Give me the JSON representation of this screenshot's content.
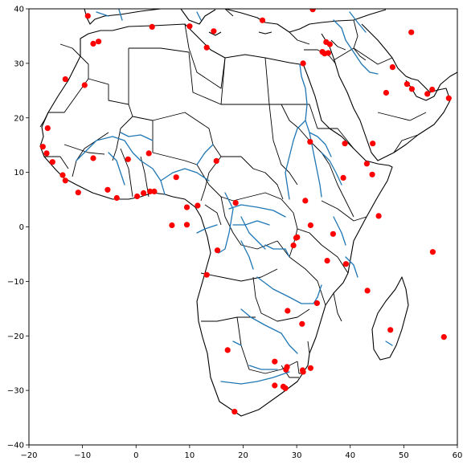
{
  "chart_data": {
    "type": "scatter",
    "title": "",
    "xlabel": "",
    "ylabel": "",
    "xlim": [
      -20,
      60
    ],
    "ylim": [
      -40,
      40
    ],
    "x_ticks": [
      "−20",
      "−10",
      "0",
      "10",
      "20",
      "30",
      "40",
      "50",
      "60"
    ],
    "y_ticks": [
      "40",
      "30",
      "20",
      "10",
      "0",
      "−10",
      "−20",
      "−30",
      "−40"
    ],
    "x_tick_values": [
      -20,
      -10,
      0,
      10,
      20,
      30,
      40,
      50,
      60
    ],
    "y_tick_values": [
      40,
      30,
      20,
      10,
      0,
      -10,
      -20,
      -30,
      -40
    ],
    "marker_color": "#ff0000",
    "river_color": "#1f77b4",
    "border_color": "#000000",
    "grid": false,
    "points": [
      [
        -9,
        38.7
      ],
      [
        -8,
        33.6
      ],
      [
        -7,
        34.0
      ],
      [
        3,
        36.7
      ],
      [
        10,
        36.8
      ],
      [
        14.5,
        35.9
      ],
      [
        13.2,
        32.9
      ],
      [
        23.6,
        37.9
      ],
      [
        33,
        39.9
      ],
      [
        34.8,
        32.1
      ],
      [
        35.5,
        33.9
      ],
      [
        36.2,
        33.5
      ],
      [
        35.9,
        31.9
      ],
      [
        35.2,
        31.8
      ],
      [
        -13.2,
        27.1
      ],
      [
        -9.6,
        26.0
      ],
      [
        -16.5,
        18.1
      ],
      [
        -17.4,
        14.7
      ],
      [
        -16.7,
        13.5
      ],
      [
        -15.6,
        11.9
      ],
      [
        -13.7,
        9.5
      ],
      [
        -13.2,
        8.5
      ],
      [
        -10.8,
        6.3
      ],
      [
        -8,
        12.6
      ],
      [
        -5.3,
        6.8
      ],
      [
        -3.6,
        5.3
      ],
      [
        -1.5,
        12.4
      ],
      [
        0.2,
        5.6
      ],
      [
        1.4,
        6.2
      ],
      [
        2.4,
        13.5
      ],
      [
        2.6,
        6.5
      ],
      [
        3.4,
        6.5
      ],
      [
        7.5,
        9.1
      ],
      [
        6.7,
        0.3
      ],
      [
        9.5,
        3.6
      ],
      [
        9.5,
        0.4
      ],
      [
        11.5,
        3.9
      ],
      [
        15.0,
        12.1
      ],
      [
        15.2,
        -4.3
      ],
      [
        13.2,
        -8.8
      ],
      [
        18.6,
        4.4
      ],
      [
        31.2,
        30.0
      ],
      [
        32.5,
        15.6
      ],
      [
        38.7,
        9.0
      ],
      [
        39.0,
        15.3
      ],
      [
        43.1,
        11.6
      ],
      [
        44.1,
        9.6
      ],
      [
        44.2,
        15.3
      ],
      [
        46.7,
        24.6
      ],
      [
        47.9,
        29.3
      ],
      [
        50.6,
        26.2
      ],
      [
        51.5,
        25.3
      ],
      [
        54.4,
        24.4
      ],
      [
        55.3,
        25.2
      ],
      [
        58.4,
        23.6
      ],
      [
        51.4,
        35.7
      ],
      [
        31.6,
        4.8
      ],
      [
        32.6,
        0.3
      ],
      [
        30.1,
        -1.9
      ],
      [
        29.4,
        -3.4
      ],
      [
        29.9,
        -2.0
      ],
      [
        36.8,
        -1.3
      ],
      [
        45.3,
        2.0
      ],
      [
        39.2,
        -6.8
      ],
      [
        35.7,
        -6.2
      ],
      [
        55.4,
        -4.6
      ],
      [
        43.2,
        -11.7
      ],
      [
        33.8,
        -14.0
      ],
      [
        28.3,
        -15.4
      ],
      [
        31.0,
        -17.8
      ],
      [
        47.5,
        -18.9
      ],
      [
        57.5,
        -20.2
      ],
      [
        17.1,
        -22.6
      ],
      [
        25.9,
        -24.7
      ],
      [
        28.2,
        -25.7
      ],
      [
        28.0,
        -26.2
      ],
      [
        31.1,
        -26.3
      ],
      [
        31.2,
        -26.6
      ],
      [
        32.6,
        -25.9
      ],
      [
        25.9,
        -29.1
      ],
      [
        27.5,
        -29.3
      ],
      [
        27.9,
        -29.6
      ],
      [
        18.4,
        -33.9
      ]
    ]
  }
}
